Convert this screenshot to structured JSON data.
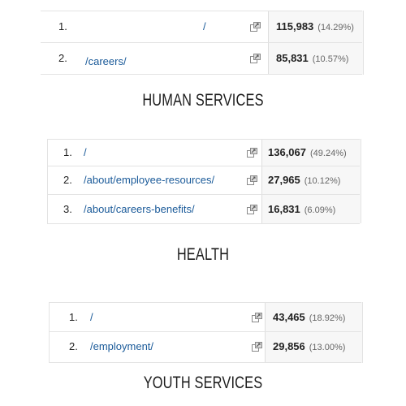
{
  "sections": [
    {
      "title": "HUMAN SERVICES",
      "rows": [
        {
          "rank": "1.",
          "page": "/",
          "sessions": "115,983",
          "percent": "(14.29%)"
        },
        {
          "rank": "2.",
          "page": "/careers/",
          "sessions": "85,831",
          "percent": "(10.57%)"
        }
      ]
    },
    {
      "title": "HEALTH",
      "rows": [
        {
          "rank": "1.",
          "page": "/",
          "sessions": "136,067",
          "percent": "(49.24%)"
        },
        {
          "rank": "2.",
          "page": "/about/employee-resources/",
          "sessions": "27,965",
          "percent": "(10.12%)"
        },
        {
          "rank": "3.",
          "page": "/about/careers-benefits/",
          "sessions": "16,831",
          "percent": "(6.09%)"
        }
      ]
    },
    {
      "title": "YOUTH SERVICES",
      "rows": [
        {
          "rank": "1.",
          "page": "/",
          "sessions": "43,465",
          "percent": "(18.92%)"
        },
        {
          "rank": "2.",
          "page": "/employment/",
          "sessions": "29,856",
          "percent": "(13.00%)"
        }
      ]
    }
  ],
  "icons": {
    "row_action": "open-in-new-window-icon"
  },
  "colors": {
    "link": "#1a5a99",
    "metric_bg": "#f7f7f7",
    "border": "#e3e3e3"
  }
}
